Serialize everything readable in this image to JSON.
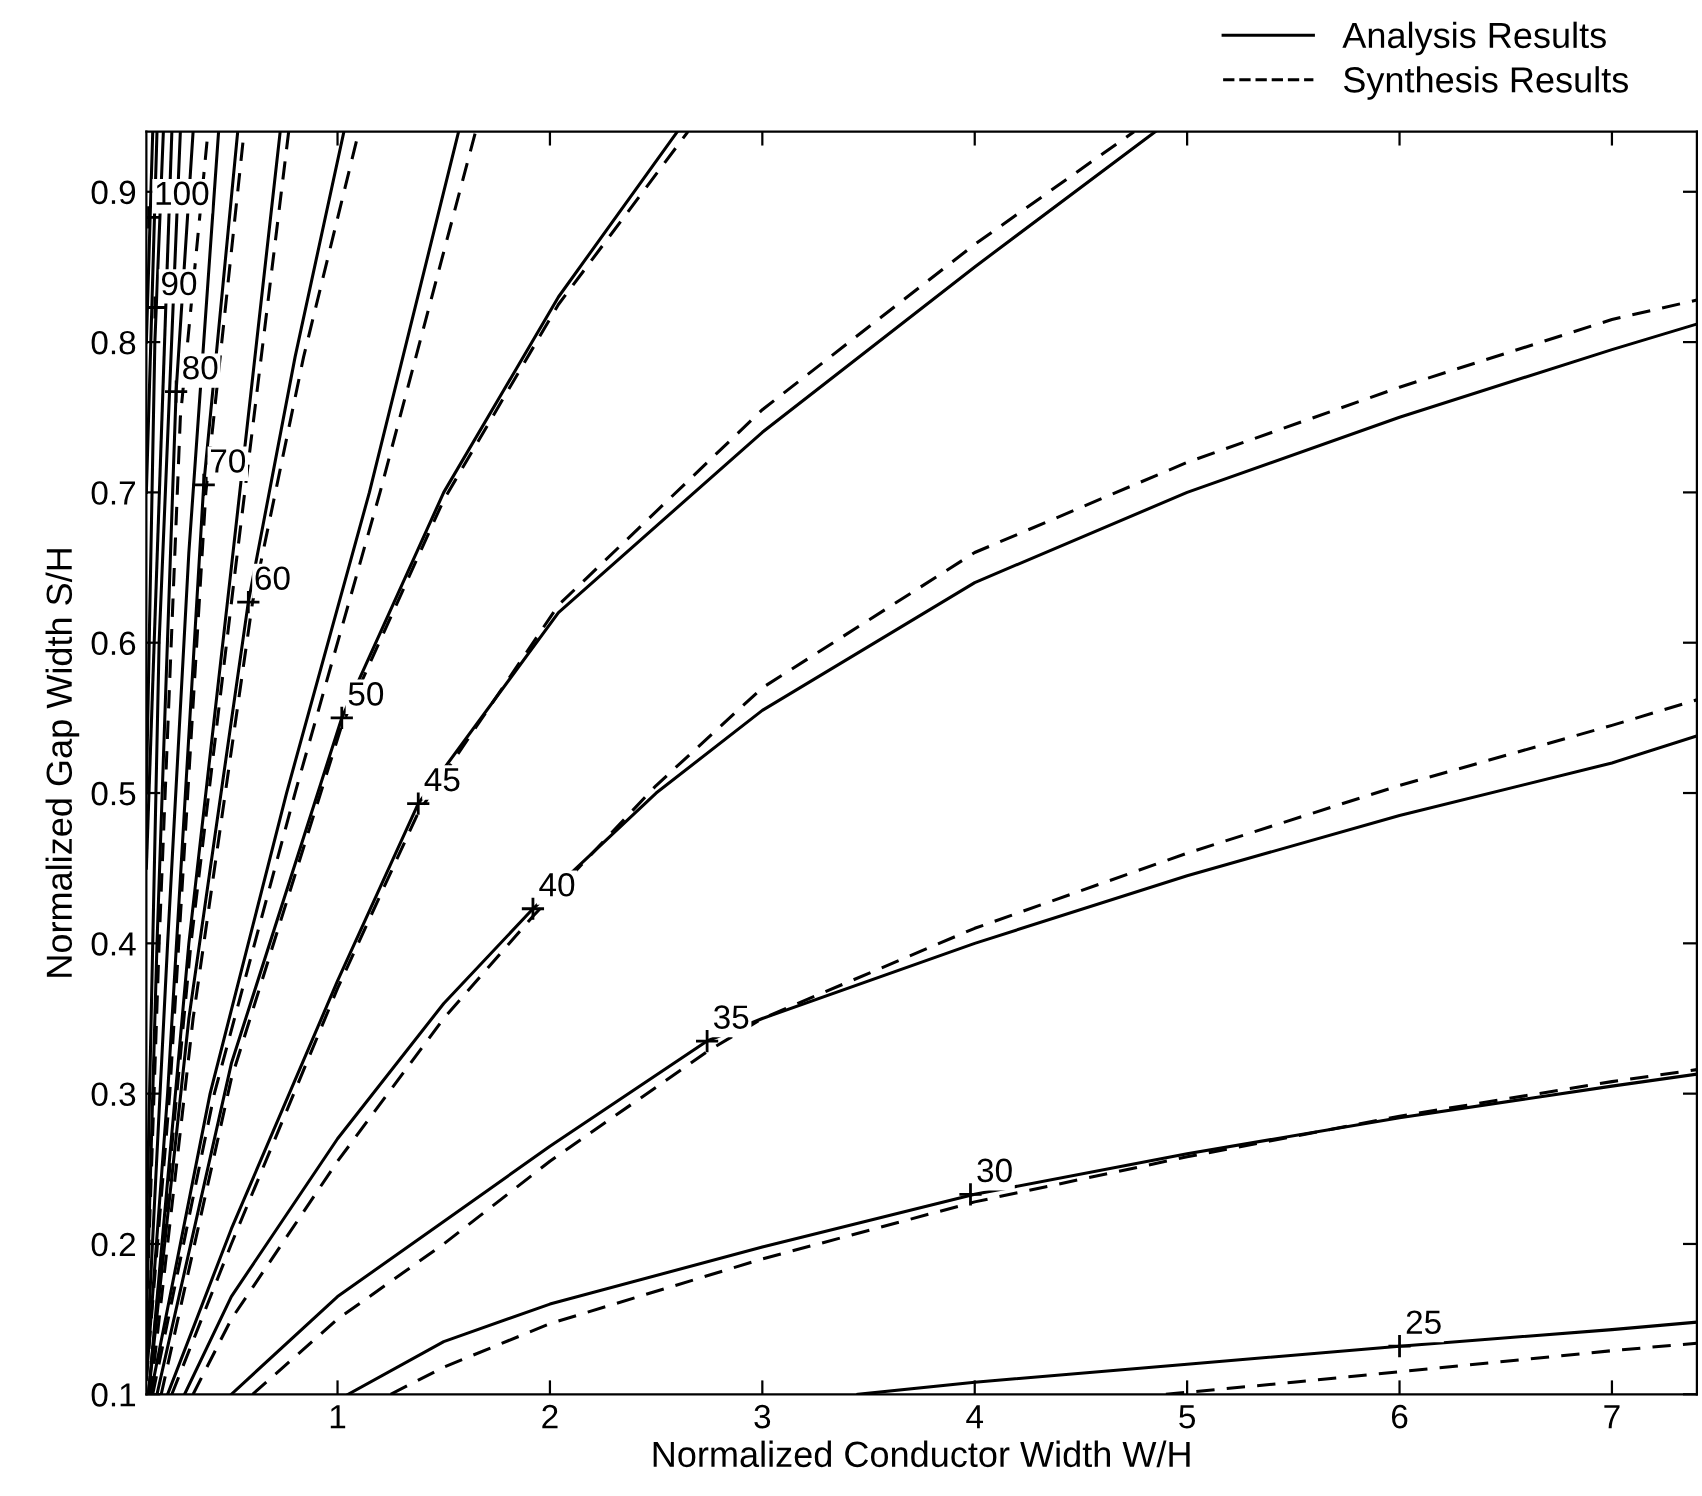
{
  "chart_data": {
    "type": "line",
    "xlabel": "Normalized Conductor Width W/H",
    "ylabel": "Normalized Gap Width S/H",
    "xlim": [
      0.1,
      7.4
    ],
    "ylim": [
      0.1,
      0.94
    ],
    "xticks": [
      1,
      2,
      3,
      4,
      5,
      6,
      7
    ],
    "yticks": [
      {
        "value": 0.1,
        "label": "0.1"
      },
      {
        "value": 0.2,
        "label": "0.2"
      },
      {
        "value": 0.3,
        "label": "0.3"
      },
      {
        "value": 0.4,
        "label": "0.4"
      },
      {
        "value": 0.5,
        "label": "0.5"
      },
      {
        "value": 0.6,
        "label": "0.6"
      },
      {
        "value": 0.7,
        "label": "0.7"
      },
      {
        "value": 0.8,
        "label": "0.8"
      },
      {
        "value": 0.9,
        "label": "0.9"
      }
    ],
    "grid": false,
    "legend": "top right",
    "marker": "none",
    "series": [
      {
        "name": "Analysis Results",
        "color": "#000000",
        "line_style": "solid",
        "x": [
          3.45,
          4,
          5,
          6,
          7,
          7.4
        ],
        "values": [
          0.1,
          0.108,
          0.12,
          0.132,
          0.143,
          0.148
        ]
      },
      {
        "name": "Synthesis Results",
        "color": "#000000",
        "line_style": "dashed",
        "x": [
          4.9,
          5.5,
          6,
          6.5,
          7,
          7.4
        ],
        "values": [
          0.1,
          0.108,
          0.115,
          0.122,
          0.129,
          0.134
        ]
      },
      {
        "color": "#000000",
        "line_style": "solid",
        "x": [
          1.05,
          1.5,
          2,
          3,
          4,
          5,
          6,
          7,
          7.4
        ],
        "values": [
          0.1,
          0.135,
          0.16,
          0.198,
          0.233,
          0.26,
          0.284,
          0.305,
          0.313
        ]
      },
      {
        "color": "#000000",
        "line_style": "dashed",
        "x": [
          1.25,
          1.5,
          2,
          3,
          4,
          5,
          6,
          7,
          7.4
        ],
        "values": [
          0.1,
          0.118,
          0.147,
          0.19,
          0.228,
          0.258,
          0.285,
          0.308,
          0.316
        ]
      },
      {
        "color": "#000000",
        "line_style": "solid",
        "x": [
          0.5,
          1,
          1.5,
          2,
          2.74,
          3,
          4,
          5,
          6,
          7,
          7.4
        ],
        "values": [
          0.1,
          0.165,
          0.215,
          0.265,
          0.335,
          0.35,
          0.4,
          0.445,
          0.485,
          0.52,
          0.538
        ]
      },
      {
        "color": "#000000",
        "line_style": "dashed",
        "x": [
          0.6,
          1,
          1.5,
          2,
          2.74,
          3,
          4,
          5,
          6,
          7,
          7.4
        ],
        "values": [
          0.1,
          0.15,
          0.2,
          0.255,
          0.328,
          0.35,
          0.41,
          0.46,
          0.505,
          0.545,
          0.562
        ]
      },
      {
        "color": "#000000",
        "line_style": "solid",
        "x": [
          0.28,
          0.5,
          1,
          1.5,
          1.92,
          2.5,
          3,
          4,
          5,
          6,
          7,
          7.4
        ],
        "values": [
          0.1,
          0.165,
          0.27,
          0.36,
          0.423,
          0.5,
          0.555,
          0.64,
          0.7,
          0.75,
          0.795,
          0.812
        ]
      },
      {
        "color": "#000000",
        "line_style": "dashed",
        "x": [
          0.32,
          0.5,
          1,
          1.5,
          1.92,
          2.5,
          3,
          4,
          5,
          6,
          7,
          7.4
        ],
        "values": [
          0.1,
          0.15,
          0.255,
          0.35,
          0.418,
          0.505,
          0.57,
          0.66,
          0.72,
          0.77,
          0.815,
          0.828
        ]
      },
      {
        "color": "#000000",
        "line_style": "solid",
        "x": [
          0.2,
          0.5,
          1,
          1.38,
          2.04,
          3,
          4,
          4.85
        ],
        "values": [
          0.1,
          0.21,
          0.375,
          0.493,
          0.62,
          0.74,
          0.85,
          0.94
        ]
      },
      {
        "color": "#000000",
        "line_style": "dashed",
        "x": [
          0.22,
          0.5,
          1,
          1.38,
          2.04,
          3,
          4,
          4.75
        ],
        "values": [
          0.1,
          0.2,
          0.37,
          0.487,
          0.625,
          0.755,
          0.865,
          0.94
        ]
      },
      {
        "color": "#000000",
        "line_style": "solid",
        "x": [
          0.15,
          0.5,
          1.02,
          1.5,
          2.04,
          2.6
        ],
        "values": [
          0.1,
          0.32,
          0.55,
          0.7,
          0.83,
          0.94
        ]
      },
      {
        "color": "#000000",
        "line_style": "dashed",
        "x": [
          0.17,
          0.5,
          1.02,
          1.5,
          2.04,
          2.65
        ],
        "values": [
          0.1,
          0.31,
          0.545,
          0.695,
          0.825,
          0.94
        ]
      },
      {
        "color": "#000000",
        "line_style": "solid",
        "x": [
          0.12,
          0.4,
          0.76,
          1.15,
          1.57
        ],
        "values": [
          0.1,
          0.3,
          0.5,
          0.7,
          0.94
        ]
      },
      {
        "color": "#000000",
        "line_style": "dashed",
        "x": [
          0.13,
          0.42,
          0.8,
          1.2,
          1.65
        ],
        "values": [
          0.1,
          0.3,
          0.5,
          0.7,
          0.94
        ]
      },
      {
        "color": "#000000",
        "line_style": "solid",
        "x": [
          0.11,
          0.3,
          0.58,
          0.8,
          1.03
        ],
        "values": [
          0.1,
          0.35,
          0.627,
          0.79,
          0.94
        ]
      },
      {
        "color": "#000000",
        "line_style": "dashed",
        "x": [
          0.12,
          0.32,
          0.6,
          0.84,
          1.1
        ],
        "values": [
          0.1,
          0.35,
          0.627,
          0.79,
          0.94
        ]
      },
      {
        "color": "#000000",
        "line_style": "solid",
        "x": [
          0.11,
          0.3,
          0.5,
          0.73
        ],
        "values": [
          0.1,
          0.4,
          0.65,
          0.94
        ]
      },
      {
        "color": "#000000",
        "line_style": "dashed",
        "x": [
          0.11,
          0.31,
          0.52,
          0.77
        ],
        "values": [
          0.1,
          0.4,
          0.65,
          0.94
        ]
      },
      {
        "color": "#000000",
        "line_style": "solid",
        "x": [
          0.1,
          0.2,
          0.37,
          0.53
        ],
        "values": [
          0.11,
          0.3,
          0.705,
          0.94
        ]
      },
      {
        "color": "#000000",
        "line_style": "dashed",
        "x": [
          0.1,
          0.21,
          0.38,
          0.56
        ],
        "values": [
          0.11,
          0.3,
          0.7,
          0.94
        ]
      },
      {
        "color": "#000000",
        "line_style": "solid",
        "x": [
          0.1,
          0.2,
          0.3,
          0.44
        ],
        "values": [
          0.12,
          0.4,
          0.66,
          0.94
        ]
      },
      {
        "color": "#000000",
        "line_style": "solid",
        "x": [
          0.1,
          0.15,
          0.24,
          0.32
        ],
        "values": [
          0.15,
          0.4,
          0.767,
          0.94
        ]
      },
      {
        "color": "#000000",
        "line_style": "dashed",
        "x": [
          0.1,
          0.16,
          0.26,
          0.39
        ],
        "values": [
          0.15,
          0.4,
          0.75,
          0.94
        ]
      },
      {
        "color": "#000000",
        "line_style": "solid",
        "x": [
          0.1,
          0.16,
          0.26
        ],
        "values": [
          0.2,
          0.6,
          0.94
        ]
      },
      {
        "color": "#000000",
        "line_style": "solid",
        "x": [
          0.1,
          0.22
        ],
        "values": [
          0.45,
          0.94
        ]
      },
      {
        "color": "#000000",
        "line_style": "solid",
        "x": [
          0.1,
          0.14,
          0.18
        ],
        "values": [
          0.5,
          0.8,
          0.94
        ]
      },
      {
        "color": "#000000",
        "line_style": "solid",
        "x": [
          0.1,
          0.15
        ],
        "values": [
          0.7,
          0.94
        ]
      },
      {
        "color": "#000000",
        "line_style": "solid",
        "x": [
          0.1,
          0.13
        ],
        "values": [
          0.8,
          0.94
        ]
      }
    ],
    "annotations": [
      {
        "text": "25",
        "x": 6,
        "y": 0.132
      },
      {
        "text": "30",
        "x": 3.98,
        "y": 0.233
      },
      {
        "text": "35",
        "x": 2.74,
        "y": 0.335
      },
      {
        "text": "40",
        "x": 1.92,
        "y": 0.423
      },
      {
        "text": "45",
        "x": 1.38,
        "y": 0.493
      },
      {
        "text": "50",
        "x": 1.02,
        "y": 0.55
      },
      {
        "text": "60",
        "x": 0.58,
        "y": 0.627
      },
      {
        "text": "70",
        "x": 0.37,
        "y": 0.705
      },
      {
        "text": "80",
        "x": 0.24,
        "y": 0.767
      },
      {
        "text": "90",
        "x": 0.14,
        "y": 0.823
      },
      {
        "text": "100",
        "x": 0.11,
        "y": 0.883
      }
    ]
  }
}
